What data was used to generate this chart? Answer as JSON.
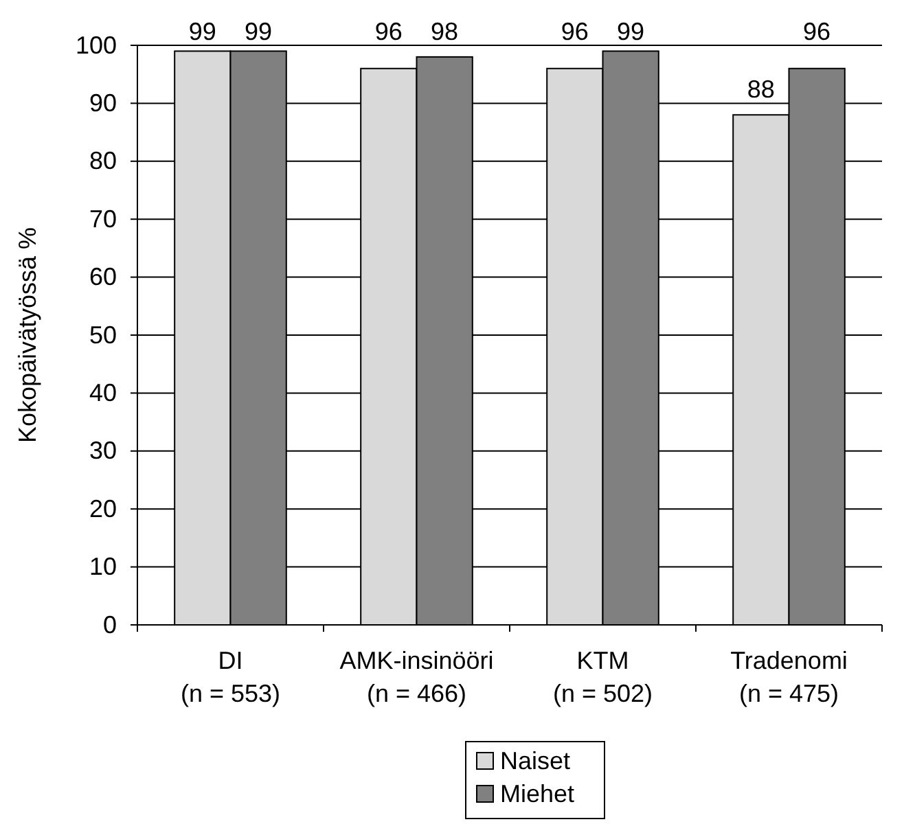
{
  "chart_data": {
    "type": "bar",
    "ylabel": "Kokopäivätyössä %",
    "categories": [
      "DI\n(n = 553)",
      "AMK-insinööri\n(n = 466)",
      "KTM\n(n = 502)",
      "Tradenomi\n(n = 475)"
    ],
    "series": [
      {
        "name": "Naiset",
        "color": "#d9d9d9",
        "values": [
          99,
          96,
          96,
          88
        ]
      },
      {
        "name": "Miehet",
        "color": "#808080",
        "values": [
          99,
          98,
          99,
          96
        ]
      }
    ],
    "ylim": [
      0,
      100
    ],
    "yticks": [
      0,
      10,
      20,
      30,
      40,
      50,
      60,
      70,
      80,
      90,
      100
    ],
    "grid": "y",
    "legend": "bottom",
    "data_labels": true
  }
}
